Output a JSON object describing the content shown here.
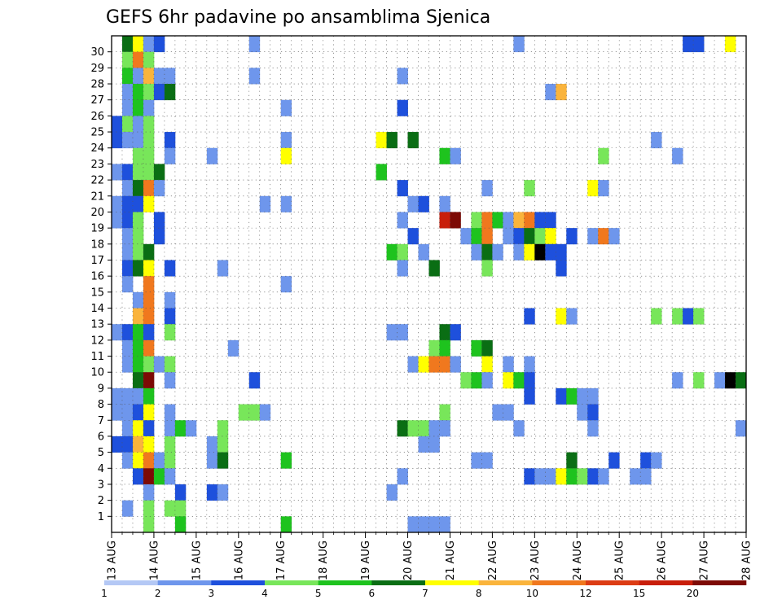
{
  "chart_data": {
    "type": "heatmap",
    "title": "GEFS 6hr padavine po ansamblima Sjenica",
    "xlabel": "",
    "ylabel": "",
    "x_tick_labels": [
      "13 AUG",
      "14 AUG",
      "15 AUG",
      "16 AUG",
      "17 AUG",
      "18 AUG",
      "19 AUG",
      "20 AUG",
      "21 AUG",
      "22 AUG",
      "23 AUG",
      "24 AUG",
      "25 AUG",
      "26 AUG",
      "27 AUG",
      "28 AUG"
    ],
    "y_tick_labels": [
      "1",
      "2",
      "3",
      "4",
      "5",
      "6",
      "7",
      "8",
      "9",
      "10",
      "11",
      "12",
      "13",
      "14",
      "15",
      "16",
      "17",
      "18",
      "19",
      "20",
      "21",
      "22",
      "23",
      "24",
      "25",
      "26",
      "27",
      "28",
      "29",
      "30"
    ],
    "x_time_steps": 60,
    "time_step_hours": 6,
    "members": 31,
    "grid": true,
    "colorbar": {
      "levels": [
        "1",
        "2",
        "3",
        "4",
        "5",
        "6",
        "7",
        "8",
        "10",
        "12",
        "15",
        "20"
      ],
      "colors": [
        "#b4c8f5",
        "#6e96ec",
        "#1e50dc",
        "#78e65a",
        "#1ec31e",
        "#0a6e14",
        "#ffff00",
        "#fab43c",
        "#f0781e",
        "#dc3c14",
        "#c81e0a",
        "#7d0a05"
      ]
    },
    "cells": [
      [
        1,
        30,
        5
      ],
      [
        2,
        30,
        6
      ],
      [
        3,
        30,
        1
      ],
      [
        4,
        30,
        2
      ],
      [
        13,
        30,
        1
      ],
      [
        38,
        30,
        1
      ],
      [
        54,
        30,
        2
      ],
      [
        55,
        30,
        2
      ],
      [
        58,
        30,
        6
      ],
      [
        1,
        29,
        3
      ],
      [
        2,
        29,
        8
      ],
      [
        3,
        29,
        3
      ],
      [
        1,
        28,
        4
      ],
      [
        2,
        28,
        1
      ],
      [
        3,
        28,
        7
      ],
      [
        4,
        28,
        1
      ],
      [
        5,
        28,
        1
      ],
      [
        13,
        28,
        1
      ],
      [
        27,
        28,
        1
      ],
      [
        1,
        27,
        1
      ],
      [
        2,
        27,
        4
      ],
      [
        3,
        27,
        3
      ],
      [
        4,
        27,
        2
      ],
      [
        5,
        27,
        5
      ],
      [
        41,
        27,
        1
      ],
      [
        42,
        27,
        7
      ],
      [
        1,
        26,
        1
      ],
      [
        2,
        26,
        4
      ],
      [
        3,
        26,
        1
      ],
      [
        16,
        26,
        1
      ],
      [
        27,
        26,
        2
      ],
      [
        0,
        25,
        2
      ],
      [
        1,
        25,
        3
      ],
      [
        2,
        25,
        1
      ],
      [
        3,
        25,
        3
      ],
      [
        0,
        24,
        2
      ],
      [
        1,
        24,
        1
      ],
      [
        2,
        24,
        1
      ],
      [
        3,
        24,
        3
      ],
      [
        5,
        24,
        2
      ],
      [
        16,
        24,
        1
      ],
      [
        25,
        24,
        6
      ],
      [
        26,
        24,
        5
      ],
      [
        28,
        24,
        5
      ],
      [
        51,
        24,
        1
      ],
      [
        2,
        23,
        3
      ],
      [
        3,
        23,
        3
      ],
      [
        5,
        23,
        1
      ],
      [
        9,
        23,
        1
      ],
      [
        16,
        23,
        6
      ],
      [
        31,
        23,
        4
      ],
      [
        32,
        23,
        1
      ],
      [
        46,
        23,
        3
      ],
      [
        53,
        23,
        1
      ],
      [
        0,
        22,
        1
      ],
      [
        1,
        22,
        2
      ],
      [
        2,
        22,
        3
      ],
      [
        3,
        22,
        3
      ],
      [
        4,
        22,
        5
      ],
      [
        25,
        22,
        4
      ],
      [
        1,
        21,
        1
      ],
      [
        2,
        21,
        5
      ],
      [
        3,
        21,
        8
      ],
      [
        4,
        21,
        1
      ],
      [
        27,
        21,
        2
      ],
      [
        35,
        21,
        1
      ],
      [
        39,
        21,
        3
      ],
      [
        45,
        21,
        6
      ],
      [
        46,
        21,
        1
      ],
      [
        0,
        20,
        1
      ],
      [
        1,
        20,
        2
      ],
      [
        2,
        20,
        2
      ],
      [
        3,
        20,
        6
      ],
      [
        14,
        20,
        1
      ],
      [
        16,
        20,
        1
      ],
      [
        28,
        20,
        1
      ],
      [
        29,
        20,
        2
      ],
      [
        31,
        20,
        1
      ],
      [
        0,
        19,
        1
      ],
      [
        1,
        19,
        2
      ],
      [
        2,
        19,
        3
      ],
      [
        4,
        19,
        2
      ],
      [
        27,
        19,
        1
      ],
      [
        31,
        19,
        10
      ],
      [
        32,
        19,
        11
      ],
      [
        34,
        19,
        3
      ],
      [
        35,
        19,
        8
      ],
      [
        36,
        19,
        4
      ],
      [
        37,
        19,
        1
      ],
      [
        38,
        19,
        7
      ],
      [
        39,
        19,
        8
      ],
      [
        40,
        19,
        2
      ],
      [
        41,
        19,
        2
      ],
      [
        1,
        18,
        1
      ],
      [
        2,
        18,
        3
      ],
      [
        4,
        18,
        2
      ],
      [
        28,
        18,
        2
      ],
      [
        33,
        18,
        1
      ],
      [
        34,
        18,
        4
      ],
      [
        35,
        18,
        8
      ],
      [
        37,
        18,
        1
      ],
      [
        38,
        18,
        2
      ],
      [
        39,
        18,
        5
      ],
      [
        40,
        18,
        3
      ],
      [
        41,
        18,
        6
      ],
      [
        43,
        18,
        2
      ],
      [
        45,
        18,
        1
      ],
      [
        46,
        18,
        8
      ],
      [
        47,
        18,
        1
      ],
      [
        1,
        17,
        1
      ],
      [
        2,
        17,
        3
      ],
      [
        3,
        17,
        5
      ],
      [
        26,
        17,
        4
      ],
      [
        27,
        17,
        3
      ],
      [
        29,
        17,
        1
      ],
      [
        34,
        17,
        1
      ],
      [
        35,
        17,
        5
      ],
      [
        36,
        17,
        1
      ],
      [
        38,
        17,
        1
      ],
      [
        39,
        17,
        6
      ],
      [
        40,
        17,
        12
      ],
      [
        41,
        17,
        2
      ],
      [
        42,
        17,
        2
      ],
      [
        1,
        16,
        2
      ],
      [
        2,
        16,
        5
      ],
      [
        3,
        16,
        6
      ],
      [
        5,
        16,
        2
      ],
      [
        10,
        16,
        1
      ],
      [
        27,
        16,
        1
      ],
      [
        30,
        16,
        5
      ],
      [
        35,
        16,
        3
      ],
      [
        42,
        16,
        2
      ],
      [
        1,
        15,
        1
      ],
      [
        3,
        15,
        8
      ],
      [
        16,
        15,
        1
      ],
      [
        2,
        14,
        1
      ],
      [
        3,
        14,
        8
      ],
      [
        5,
        14,
        1
      ],
      [
        2,
        13,
        7
      ],
      [
        3,
        13,
        8
      ],
      [
        5,
        13,
        2
      ],
      [
        39,
        13,
        2
      ],
      [
        42,
        13,
        6
      ],
      [
        43,
        13,
        1
      ],
      [
        51,
        13,
        3
      ],
      [
        53,
        13,
        3
      ],
      [
        54,
        13,
        2
      ],
      [
        55,
        13,
        3
      ],
      [
        0,
        12,
        1
      ],
      [
        1,
        12,
        2
      ],
      [
        2,
        12,
        4
      ],
      [
        3,
        12,
        2
      ],
      [
        5,
        12,
        3
      ],
      [
        26,
        12,
        1
      ],
      [
        27,
        12,
        1
      ],
      [
        31,
        12,
        5
      ],
      [
        32,
        12,
        2
      ],
      [
        1,
        11,
        1
      ],
      [
        2,
        11,
        4
      ],
      [
        3,
        11,
        8
      ],
      [
        11,
        11,
        1
      ],
      [
        30,
        11,
        3
      ],
      [
        31,
        11,
        4
      ],
      [
        34,
        11,
        4
      ],
      [
        35,
        11,
        5
      ],
      [
        1,
        10,
        1
      ],
      [
        2,
        10,
        4
      ],
      [
        3,
        10,
        3
      ],
      [
        4,
        10,
        1
      ],
      [
        5,
        10,
        3
      ],
      [
        28,
        10,
        1
      ],
      [
        29,
        10,
        6
      ],
      [
        30,
        10,
        8
      ],
      [
        31,
        10,
        8
      ],
      [
        32,
        10,
        1
      ],
      [
        35,
        10,
        6
      ],
      [
        37,
        10,
        1
      ],
      [
        39,
        10,
        1
      ],
      [
        2,
        9,
        5
      ],
      [
        3,
        9,
        11
      ],
      [
        5,
        9,
        1
      ],
      [
        13,
        9,
        2
      ],
      [
        33,
        9,
        3
      ],
      [
        34,
        9,
        4
      ],
      [
        35,
        9,
        1
      ],
      [
        37,
        9,
        6
      ],
      [
        38,
        9,
        4
      ],
      [
        39,
        9,
        2
      ],
      [
        53,
        9,
        1
      ],
      [
        55,
        9,
        3
      ],
      [
        57,
        9,
        1
      ],
      [
        58,
        9,
        12
      ],
      [
        59,
        9,
        5
      ],
      [
        0,
        8,
        1
      ],
      [
        1,
        8,
        1
      ],
      [
        2,
        8,
        1
      ],
      [
        3,
        8,
        4
      ],
      [
        39,
        8,
        2
      ],
      [
        42,
        8,
        2
      ],
      [
        43,
        8,
        4
      ],
      [
        44,
        8,
        1
      ],
      [
        45,
        8,
        1
      ],
      [
        0,
        7,
        1
      ],
      [
        1,
        7,
        1
      ],
      [
        2,
        7,
        2
      ],
      [
        3,
        7,
        6
      ],
      [
        5,
        7,
        1
      ],
      [
        12,
        7,
        3
      ],
      [
        13,
        7,
        3
      ],
      [
        14,
        7,
        1
      ],
      [
        31,
        7,
        3
      ],
      [
        36,
        7,
        1
      ],
      [
        37,
        7,
        1
      ],
      [
        44,
        7,
        1
      ],
      [
        45,
        7,
        2
      ],
      [
        1,
        6,
        1
      ],
      [
        2,
        6,
        6
      ],
      [
        3,
        6,
        2
      ],
      [
        5,
        6,
        1
      ],
      [
        6,
        6,
        4
      ],
      [
        7,
        6,
        1
      ],
      [
        10,
        6,
        3
      ],
      [
        27,
        6,
        5
      ],
      [
        28,
        6,
        3
      ],
      [
        29,
        6,
        3
      ],
      [
        30,
        6,
        1
      ],
      [
        31,
        6,
        1
      ],
      [
        38,
        6,
        1
      ],
      [
        45,
        6,
        1
      ],
      [
        59,
        6,
        1
      ],
      [
        0,
        5,
        2
      ],
      [
        1,
        5,
        2
      ],
      [
        2,
        5,
        7
      ],
      [
        3,
        5,
        6
      ],
      [
        5,
        5,
        3
      ],
      [
        9,
        5,
        1
      ],
      [
        10,
        5,
        3
      ],
      [
        29,
        5,
        1
      ],
      [
        30,
        5,
        1
      ],
      [
        1,
        4,
        1
      ],
      [
        2,
        4,
        6
      ],
      [
        3,
        4,
        8
      ],
      [
        4,
        4,
        1
      ],
      [
        5,
        4,
        3
      ],
      [
        9,
        4,
        1
      ],
      [
        10,
        4,
        5
      ],
      [
        16,
        4,
        4
      ],
      [
        34,
        4,
        1
      ],
      [
        35,
        4,
        1
      ],
      [
        43,
        4,
        5
      ],
      [
        47,
        4,
        2
      ],
      [
        50,
        4,
        2
      ],
      [
        51,
        4,
        1
      ],
      [
        2,
        3,
        2
      ],
      [
        3,
        3,
        11
      ],
      [
        4,
        3,
        4
      ],
      [
        5,
        3,
        1
      ],
      [
        27,
        3,
        1
      ],
      [
        39,
        3,
        2
      ],
      [
        40,
        3,
        1
      ],
      [
        41,
        3,
        1
      ],
      [
        42,
        3,
        6
      ],
      [
        43,
        3,
        4
      ],
      [
        44,
        3,
        3
      ],
      [
        45,
        3,
        2
      ],
      [
        46,
        3,
        1
      ],
      [
        49,
        3,
        1
      ],
      [
        50,
        3,
        1
      ],
      [
        3,
        2,
        1
      ],
      [
        6,
        2,
        2
      ],
      [
        9,
        2,
        2
      ],
      [
        10,
        2,
        1
      ],
      [
        26,
        2,
        1
      ],
      [
        1,
        1,
        1
      ],
      [
        3,
        1,
        3
      ],
      [
        5,
        1,
        3
      ],
      [
        6,
        1,
        3
      ],
      [
        3,
        0,
        3
      ],
      [
        6,
        0,
        4
      ],
      [
        16,
        0,
        4
      ],
      [
        28,
        0,
        1
      ],
      [
        29,
        0,
        1
      ],
      [
        30,
        0,
        1
      ],
      [
        31,
        0,
        1
      ]
    ]
  }
}
